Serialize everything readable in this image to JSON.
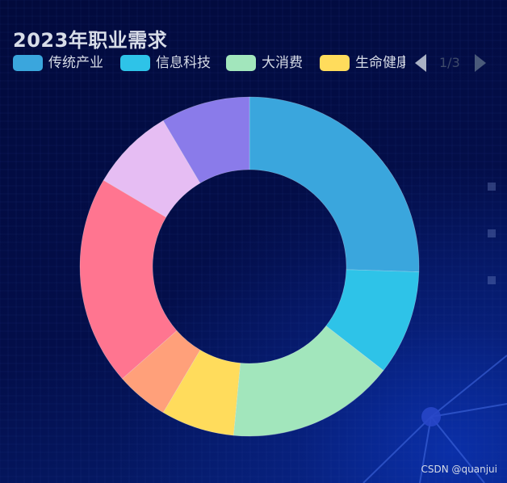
{
  "chart_data": {
    "type": "pie",
    "title": "2023年职业需求",
    "donut": true,
    "legend_position": "top-left",
    "legend_page": "1/3",
    "series": [
      {
        "name": "传统产业",
        "value": 25.5,
        "color": "#3aa6dd"
      },
      {
        "name": "信息科技",
        "value": 10.0,
        "color": "#2ec3e8"
      },
      {
        "name": "大消费",
        "value": 16.0,
        "color": "#a2e6bc"
      },
      {
        "name": "生命健康",
        "value": 7.0,
        "color": "#ffdc5c"
      },
      {
        "name": "",
        "value": 5.0,
        "color": "#ffa07a"
      },
      {
        "name": "",
        "value": 20.0,
        "color": "#ff7590"
      },
      {
        "name": "",
        "value": 8.0,
        "color": "#e6bdf3"
      },
      {
        "name": "",
        "value": 8.5,
        "color": "#8a7bea"
      }
    ],
    "visible_legend": [
      "传统产业",
      "信息科技",
      "大消费",
      "生命健康"
    ]
  },
  "watermark": "CSDN @quanjui"
}
